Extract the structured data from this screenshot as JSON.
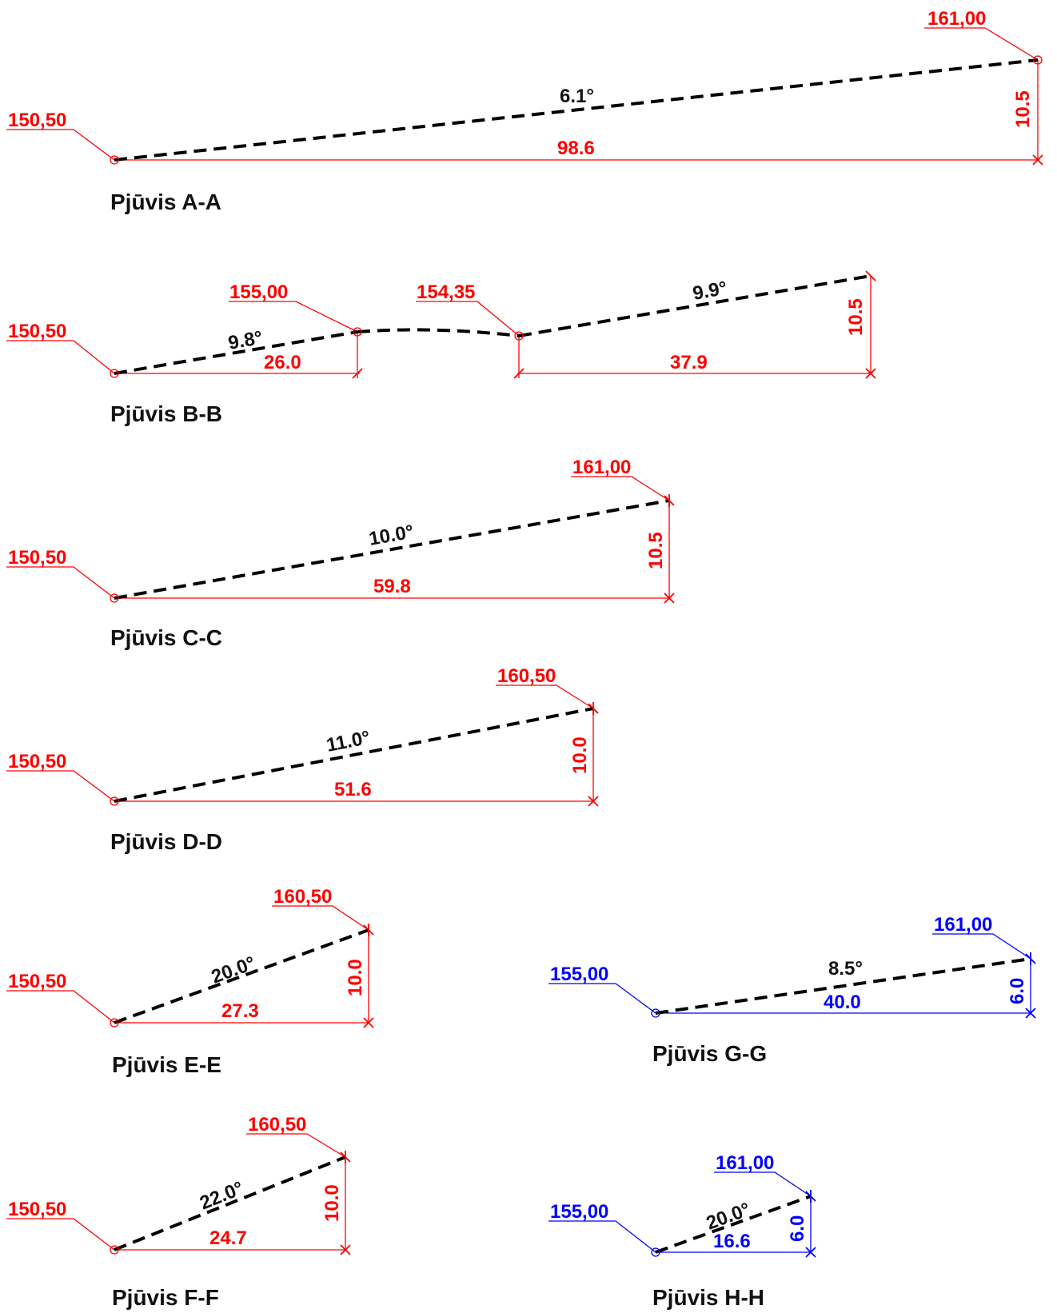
{
  "colors": {
    "red": "#ff0000",
    "blue": "#0000ff",
    "black": "#000000"
  },
  "sections": {
    "aa": {
      "title": "Pjūvis A-A",
      "elev_start": "150,50",
      "elev_end": "161,00",
      "angle": "6.1°",
      "length": "98.6",
      "height": "10.5"
    },
    "bb": {
      "title": "Pjūvis B-B",
      "elev_start": "150,50",
      "elev_mid1": "155,00",
      "elev_mid2": "154,35",
      "angle1": "9.8°",
      "length1": "26.0",
      "angle2": "9.9°",
      "length2": "37.9",
      "height": "10.5"
    },
    "cc": {
      "title": "Pjūvis C-C",
      "elev_start": "150,50",
      "elev_end": "161,00",
      "angle": "10.0°",
      "length": "59.8",
      "height": "10.5"
    },
    "dd": {
      "title": "Pjūvis D-D",
      "elev_start": "150,50",
      "elev_end": "160,50",
      "angle": "11.0°",
      "length": "51.6",
      "height": "10.0"
    },
    "ee": {
      "title": "Pjūvis E-E",
      "elev_start": "150,50",
      "elev_end": "160,50",
      "angle": "20.0°",
      "length": "27.3",
      "height": "10.0"
    },
    "ff": {
      "title": "Pjūvis F-F",
      "elev_start": "150,50",
      "elev_end": "160,50",
      "angle": "22.0°",
      "length": "24.7",
      "height": "10.0"
    },
    "gg": {
      "title": "Pjūvis G-G",
      "elev_start": "155,00",
      "elev_end": "161,00",
      "angle": "8.5°",
      "length": "40.0",
      "height": "6.0"
    },
    "hh": {
      "title": "Pjūvis H-H",
      "elev_start": "155,00",
      "elev_end": "161,00",
      "angle": "20.0°",
      "length": "16.6",
      "height": "6.0"
    }
  }
}
